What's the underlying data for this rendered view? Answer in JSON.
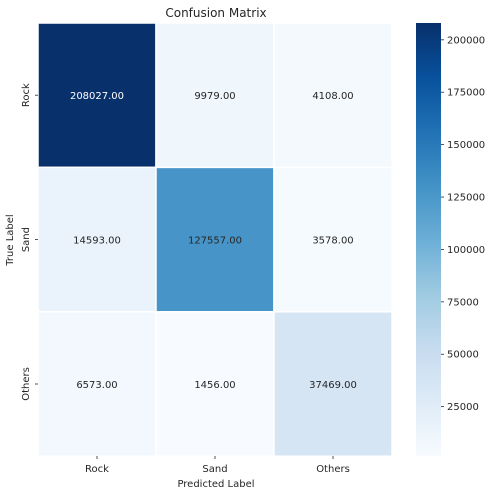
{
  "chart_data": {
    "type": "heatmap",
    "title": "Confusion Matrix",
    "xlabel": "Predicted Label",
    "ylabel": "True Label",
    "x_categories": [
      "Rock",
      "Sand",
      "Others"
    ],
    "y_categories": [
      "Rock",
      "Sand",
      "Others"
    ],
    "values": [
      [
        208027,
        9979,
        4108
      ],
      [
        14593,
        127557,
        3578
      ],
      [
        6573,
        1456,
        37469
      ]
    ],
    "cell_labels": [
      [
        "208027.00",
        "9979.00",
        "4108.00"
      ],
      [
        "14593.00",
        "127557.00",
        "3578.00"
      ],
      [
        "6573.00",
        "1456.00",
        "37469.00"
      ]
    ],
    "colormap": "Blues",
    "vmin": 1456,
    "vmax": 208027,
    "colorbar_ticks": [
      25000,
      50000,
      75000,
      100000,
      125000,
      150000,
      175000,
      200000
    ],
    "colorbar_tick_labels": [
      "25000",
      "50000",
      "75000",
      "100000",
      "125000",
      "150000",
      "175000",
      "200000"
    ],
    "annotation_colors": {
      "dark_text": "#262626",
      "light_text": "#ffffff"
    }
  }
}
